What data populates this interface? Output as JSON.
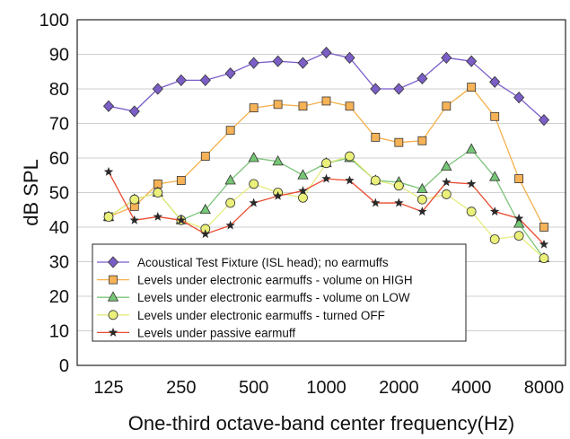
{
  "chart_data": {
    "type": "line",
    "title": "",
    "xlabel": "One-third octave-band center frequency(Hz)",
    "ylabel": "dB SPL",
    "ylim": [
      0,
      100
    ],
    "yticks": [
      0,
      10,
      20,
      30,
      40,
      50,
      60,
      70,
      80,
      90,
      100
    ],
    "x_scale": "log",
    "grid": "horizontal",
    "x": [
      125,
      160,
      200,
      250,
      315,
      400,
      500,
      630,
      800,
      1000,
      1250,
      1600,
      2000,
      2500,
      3150,
      4000,
      5000,
      6300,
      8000
    ],
    "x_tick_values": [
      125,
      250,
      500,
      1000,
      2000,
      4000,
      8000
    ],
    "x_tick_labels": [
      "125",
      "250",
      "500",
      "1000",
      "2000",
      "4000",
      "8000"
    ],
    "legend_position": "lower-left",
    "series": [
      {
        "name": "Acoustical Test Fixture (ISL head); no earmuffs",
        "color": "#7a5cc9",
        "fill": "#7b5ec6",
        "marker": "diamond",
        "values": [
          75,
          73.5,
          80,
          82.5,
          82.5,
          84.5,
          87.5,
          88,
          87.5,
          90.5,
          89,
          80,
          80,
          83,
          89,
          88,
          82,
          77.5,
          71
        ]
      },
      {
        "name": "Levels under electronic earmuffs - volume on HIGH",
        "color": "#f5b04a",
        "fill": "#f6b257",
        "marker": "square",
        "values": [
          43,
          46,
          52.5,
          53.5,
          60.5,
          68,
          74.5,
          75.5,
          75,
          76.5,
          75,
          66,
          64.5,
          65,
          75,
          80.5,
          72,
          54,
          40
        ]
      },
      {
        "name": "Levels under electronic earmuffs - volume on LOW",
        "color": "#7cc47a",
        "fill": "#76c775",
        "marker": "triangle",
        "values": [
          43,
          48,
          50,
          42,
          45,
          53.5,
          60,
          59,
          55,
          58.5,
          60,
          53.5,
          53,
          51,
          57.5,
          62.5,
          54.5,
          41,
          31
        ]
      },
      {
        "name": "Levels under electronic earmuffs - turned OFF",
        "color": "#e6eb7c",
        "fill": "#eaf07a",
        "marker": "circle",
        "values": [
          43,
          48,
          50,
          42,
          39.5,
          47,
          52.5,
          50,
          48.5,
          58.5,
          60.5,
          53.5,
          52,
          48,
          49.5,
          44.5,
          36.5,
          37.5,
          31
        ]
      },
      {
        "name": "Levels under passive earmuff",
        "color": "#e84b2f",
        "fill": "#2a2a2a",
        "marker": "star",
        "values": [
          56,
          42,
          43,
          42,
          38,
          40.5,
          47,
          49,
          50.5,
          54,
          53.5,
          47,
          47,
          44.5,
          53,
          52.5,
          44.5,
          42.5,
          35
        ]
      }
    ]
  }
}
